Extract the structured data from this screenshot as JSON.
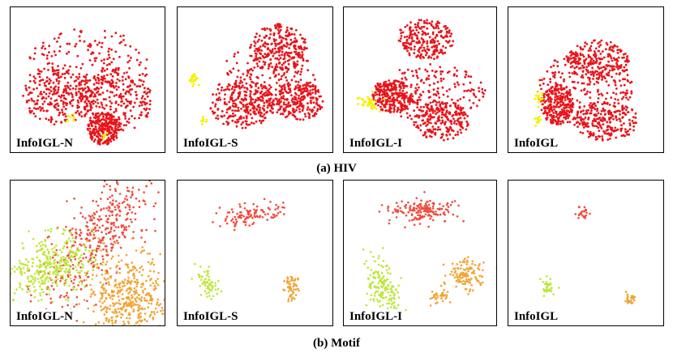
{
  "captions": {
    "a": "(a)  HIV",
    "b": "(b)  Motif"
  },
  "rows": [
    {
      "name": "HIV",
      "panels": [
        {
          "label": "InfoIGL-N"
        },
        {
          "label": "InfoIGL-S"
        },
        {
          "label": "InfoIGL-I"
        },
        {
          "label": "InfoIGL"
        }
      ]
    },
    {
      "name": "Motif",
      "panels": [
        {
          "label": "InfoIGL-N"
        },
        {
          "label": "InfoIGL-S"
        },
        {
          "label": "InfoIGL-I"
        },
        {
          "label": "InfoIGL"
        }
      ]
    }
  ],
  "colors": {
    "red": "#e8141a",
    "yellow": "#f2f200",
    "motif_red": "#ef4a3b",
    "motif_green": "#bde63a",
    "motif_orange": "#f2a332",
    "border": "#000000"
  }
}
